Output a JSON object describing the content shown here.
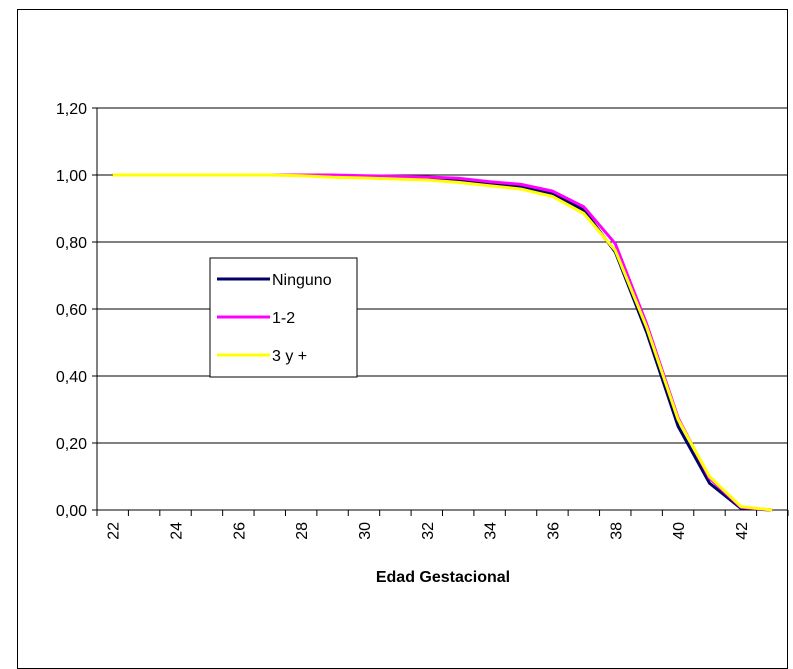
{
  "chart_data": {
    "type": "line",
    "title": "",
    "xlabel": "Edad Gestacional",
    "ylabel": "",
    "x": [
      22,
      23,
      24,
      25,
      26,
      27,
      28,
      29,
      30,
      31,
      32,
      33,
      34,
      35,
      36,
      37,
      38,
      39,
      40,
      41,
      42,
      43
    ],
    "xtick_labels": [
      "22",
      "24",
      "26",
      "28",
      "30",
      "32",
      "34",
      "36",
      "38",
      "40",
      "42"
    ],
    "xlim": [
      21.5,
      43.5
    ],
    "ylim": [
      0,
      1.2
    ],
    "yticks": [
      0,
      0.2,
      0.4,
      0.6,
      0.8,
      1.0,
      1.2
    ],
    "ytick_labels": [
      "0,00",
      "0,20",
      "0,40",
      "0,60",
      "0,80",
      "1,00",
      "1,20"
    ],
    "grid": "horizontal",
    "legend_position": "left-middle",
    "series": [
      {
        "name": "Ninguno",
        "color": "#000066",
        "values": [
          1.0,
          1.0,
          1.0,
          1.0,
          1.0,
          1.0,
          1.0,
          0.995,
          0.995,
          0.993,
          0.99,
          0.985,
          0.975,
          0.965,
          0.945,
          0.895,
          0.77,
          0.53,
          0.25,
          0.08,
          0.005,
          0.0
        ]
      },
      {
        "name": "1-2",
        "color": "#ff00ff",
        "values": [
          1.0,
          1.0,
          1.0,
          1.0,
          1.0,
          1.0,
          1.0,
          1.0,
          0.998,
          0.996,
          0.994,
          0.99,
          0.98,
          0.972,
          0.952,
          0.905,
          0.795,
          0.555,
          0.275,
          0.095,
          0.008,
          0.0
        ]
      },
      {
        "name": "3 y +",
        "color": "#ffff00",
        "values": [
          1.0,
          1.0,
          1.0,
          1.0,
          1.0,
          1.0,
          0.998,
          0.993,
          0.991,
          0.988,
          0.985,
          0.978,
          0.968,
          0.958,
          0.936,
          0.885,
          0.775,
          0.545,
          0.27,
          0.1,
          0.01,
          0.0
        ]
      }
    ]
  }
}
